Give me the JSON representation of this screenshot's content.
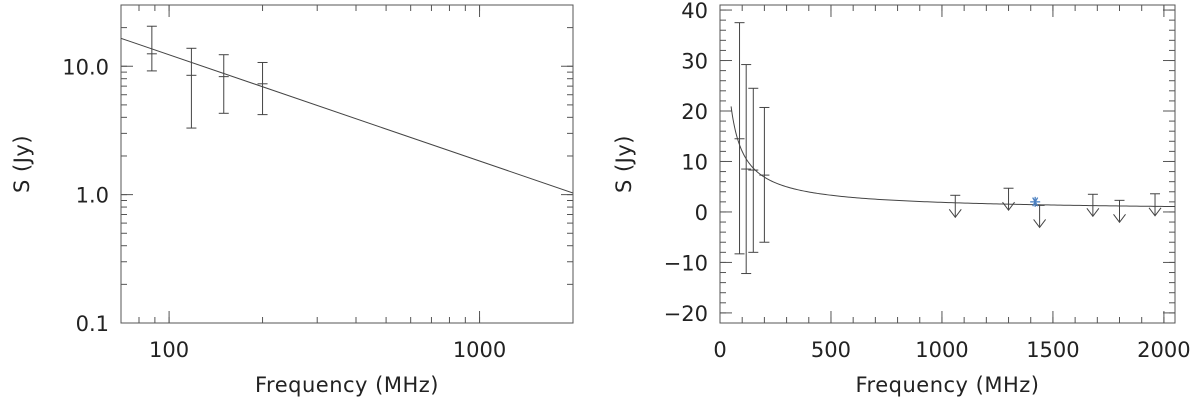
{
  "chart_data": [
    {
      "type": "scatter",
      "panel": "left",
      "x_scale": "log",
      "y_scale": "log",
      "xlabel": "Frequency (MHz)",
      "ylabel": "S (Jy)",
      "xlim": [
        70,
        2000
      ],
      "ylim": [
        0.1,
        30
      ],
      "x_ticks": [
        {
          "value": 100,
          "label": "100"
        },
        {
          "value": 1000,
          "label": "1000"
        }
      ],
      "y_ticks": [
        {
          "value": 0.1,
          "label": "0.1"
        },
        {
          "value": 1.0,
          "label": "1.0"
        },
        {
          "value": 10.0,
          "label": "10.0"
        }
      ],
      "points": [
        {
          "x": 88,
          "y": 12.5,
          "y_low": 9.2,
          "y_high": 20.5
        },
        {
          "x": 118,
          "y": 8.5,
          "y_low": 3.3,
          "y_high": 13.8
        },
        {
          "x": 150,
          "y": 8.3,
          "y_low": 4.3,
          "y_high": 12.3
        },
        {
          "x": 200,
          "y": 7.3,
          "y_low": 4.2,
          "y_high": 10.7
        }
      ],
      "fit_line": {
        "x": [
          70,
          2000
        ],
        "y": [
          16.5,
          1.03
        ]
      }
    },
    {
      "type": "scatter",
      "panel": "right",
      "x_scale": "linear",
      "y_scale": "linear",
      "xlabel": "Frequency (MHz)",
      "ylabel": "S (Jy)",
      "xlim": [
        0,
        2050
      ],
      "ylim": [
        -22,
        41
      ],
      "x_ticks": [
        {
          "value": 0,
          "label": "0"
        },
        {
          "value": 500,
          "label": "500"
        },
        {
          "value": 1000,
          "label": "1000"
        },
        {
          "value": 1500,
          "label": "1500"
        },
        {
          "value": 2000,
          "label": "2000"
        }
      ],
      "y_ticks": [
        {
          "value": -20,
          "label": "−20"
        },
        {
          "value": -10,
          "label": "−10"
        },
        {
          "value": 0,
          "label": "0"
        },
        {
          "value": 10,
          "label": "10"
        },
        {
          "value": 20,
          "label": "20"
        },
        {
          "value": 30,
          "label": "30"
        },
        {
          "value": 40,
          "label": "40"
        }
      ],
      "points": [
        {
          "x": 88,
          "y": 14.5,
          "y_low": -8.3,
          "y_high": 37.5
        },
        {
          "x": 118,
          "y": 8.5,
          "y_low": -12.2,
          "y_high": 29.2
        },
        {
          "x": 150,
          "y": 8.3,
          "y_low": -8.0,
          "y_high": 24.5
        },
        {
          "x": 200,
          "y": 7.3,
          "y_low": -6.0,
          "y_high": 20.7
        }
      ],
      "upper_limits": [
        {
          "x": 1060,
          "y": 3.3
        },
        {
          "x": 1300,
          "y": 4.7
        },
        {
          "x": 1440,
          "y": 1.3
        },
        {
          "x": 1680,
          "y": 3.5
        },
        {
          "x": 1800,
          "y": 2.3
        },
        {
          "x": 1960,
          "y": 3.6
        }
      ],
      "marked_point": {
        "x": 1420,
        "y": 2.0,
        "marker": "asterisk",
        "color": "#4a7fc0"
      },
      "fit_curve": {
        "function": "power_law",
        "amplitude_at_100": 12.0,
        "index": -0.8,
        "x_start": 50,
        "x_end": 2050
      },
      "line_color": "#333333"
    }
  ]
}
